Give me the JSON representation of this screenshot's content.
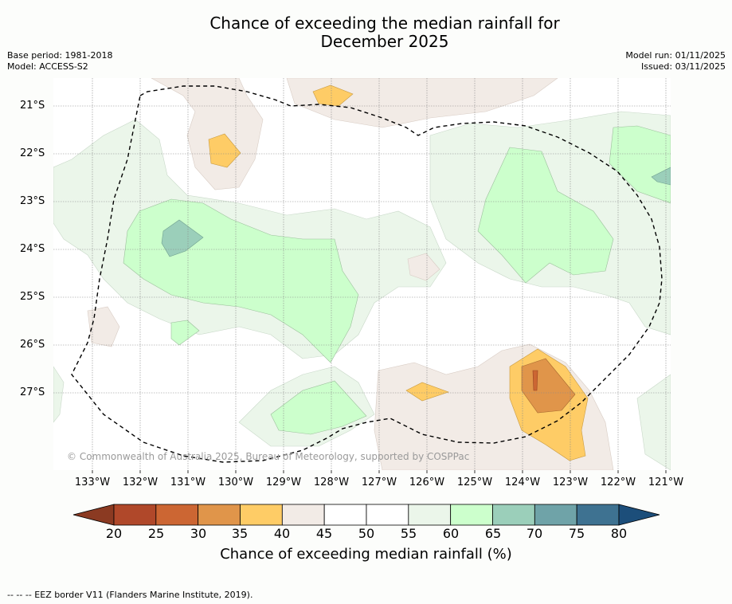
{
  "title_line1": "Chance of exceeding the median rainfall for",
  "title_line2": "December 2025",
  "meta_left": {
    "base_period": "Base period: 1981-2018",
    "model": "Model: ACCESS-S2"
  },
  "meta_right": {
    "model_run": "Model run: 01/11/2025",
    "issued": "Issued: 03/11/2025"
  },
  "latitudes": [
    "21°S",
    "22°S",
    "23°S",
    "24°S",
    "25°S",
    "26°S",
    "27°S"
  ],
  "longitudes": [
    "133°W",
    "132°W",
    "131°W",
    "130°W",
    "129°W",
    "128°W",
    "127°W",
    "126°W",
    "125°W",
    "124°W",
    "123°W",
    "122°W",
    "121°W"
  ],
  "copyright": "© Commonwealth of Australia 2025, Bureau of Meteorology, supported by COSPPac",
  "colorbar": {
    "ticks": [
      "20",
      "25",
      "30",
      "35",
      "40",
      "45",
      "50",
      "55",
      "60",
      "65",
      "70",
      "75",
      "80"
    ],
    "colors": [
      "#b0482a",
      "#cc6633",
      "#e0954a",
      "#fecc66",
      "#f2ebe6",
      "#ffffff",
      "#ffffff",
      "#ebf6ea",
      "#ccffcc",
      "#9bcfba",
      "#6fa3a8",
      "#3e7291"
    ],
    "low_color": "#8b3a22",
    "high_color": "#1c4e7a",
    "label": "Chance of exceeding median rainfall (%)"
  },
  "footer": "--  --  -- EEZ border V11 (Flanders Marine Institute, 2019)."
}
